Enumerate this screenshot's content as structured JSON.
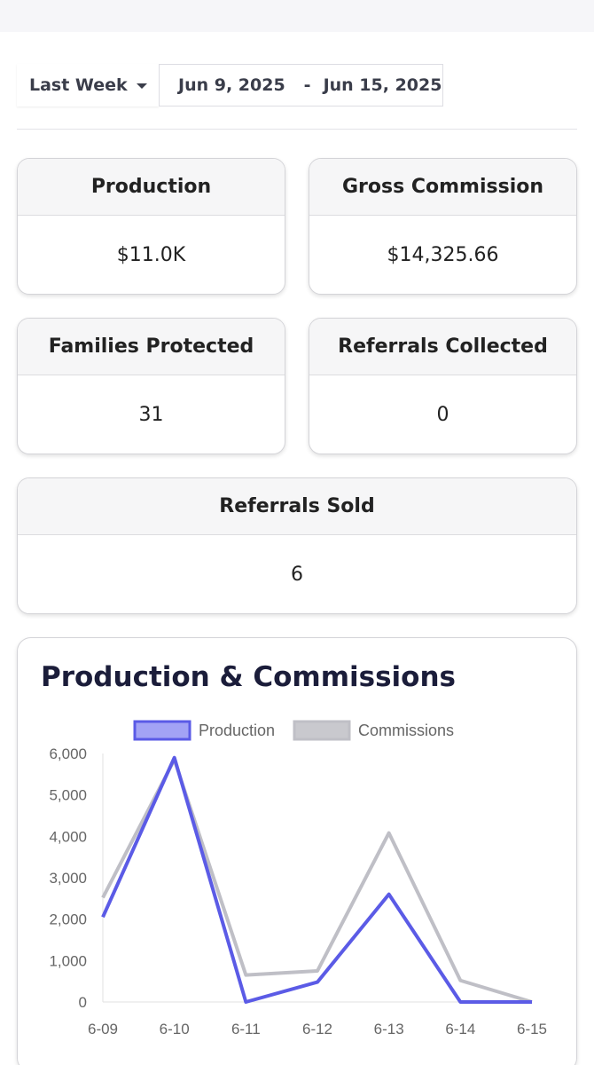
{
  "filter": {
    "period_label": "Last Week",
    "start_date": "Jun 9, 2025",
    "separator": "-",
    "end_date": "Jun 15, 2025"
  },
  "stats": [
    {
      "title": "Production",
      "value": "$11.0K"
    },
    {
      "title": "Gross Commission",
      "value": "$14,325.66"
    },
    {
      "title": "Families Protected",
      "value": "31"
    },
    {
      "title": "Referrals Collected",
      "value": "0"
    },
    {
      "title": "Referrals Sold",
      "value": "6"
    }
  ],
  "colors": {
    "production": "#5b5be6",
    "production_fill": "#a3a3f5",
    "commissions": "#bfbfc6",
    "commissions_fill": "#c9c9ce"
  },
  "chart_data": {
    "type": "line",
    "title": "Production & Commissions",
    "categories": [
      "6-09",
      "6-10",
      "6-11",
      "6-12",
      "6-13",
      "6-14",
      "6-15"
    ],
    "series": [
      {
        "name": "Production",
        "values": [
          2050,
          5900,
          0,
          480,
          2600,
          0,
          0
        ]
      },
      {
        "name": "Commissions",
        "values": [
          2520,
          5850,
          650,
          750,
          4080,
          520,
          0
        ]
      }
    ],
    "ylim": [
      0,
      6000
    ],
    "yticks": [
      0,
      1000,
      2000,
      3000,
      4000,
      5000,
      6000
    ],
    "ytick_labels": [
      "0",
      "1,000",
      "2,000",
      "3,000",
      "4,000",
      "5,000",
      "6,000"
    ],
    "legend_position": "top",
    "xlabel": "",
    "ylabel": ""
  }
}
